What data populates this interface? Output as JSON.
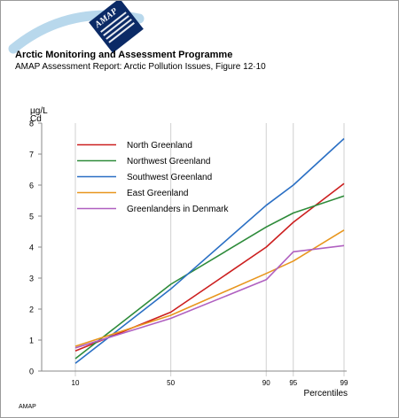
{
  "header": {
    "logo_text": "AMAP",
    "organization": "Arctic Monitoring and Assessment Programme",
    "report_title": "AMAP Assessment Report: Arctic Pollution Issues, Figure 12·10"
  },
  "footer": {
    "label": "AMAP"
  },
  "chart_data": {
    "type": "line",
    "title": "",
    "ylabel_line1": "Cd",
    "ylabel_line2": "µg/L",
    "xlabel": "Percentiles",
    "ylim": [
      0,
      8
    ],
    "yticks": [
      0,
      1,
      2,
      3,
      4,
      5,
      6,
      7,
      8
    ],
    "xticks": [
      10,
      50,
      90,
      95,
      99
    ],
    "x_tick_labels": [
      "10",
      "50",
      "90",
      "95",
      "99"
    ],
    "grid": "vertical lines at x ticks",
    "legend_position": "top-left",
    "series": [
      {
        "name": "North Greenland",
        "color": "#cc1f1f",
        "x": [
          10,
          50,
          90,
          95,
          99
        ],
        "values": [
          0.65,
          1.9,
          4.0,
          4.8,
          6.05
        ]
      },
      {
        "name": "Northwest Greenland",
        "color": "#2e8b3a",
        "x": [
          10,
          50,
          90,
          95,
          99
        ],
        "values": [
          0.4,
          2.8,
          4.65,
          5.1,
          5.65
        ]
      },
      {
        "name": "Southwest Greenland",
        "color": "#2a6fc4",
        "x": [
          10,
          50,
          90,
          95,
          99
        ],
        "values": [
          0.25,
          2.65,
          5.35,
          6.0,
          7.5
        ]
      },
      {
        "name": "East Greenland",
        "color": "#e8961e",
        "x": [
          10,
          50,
          90,
          95,
          99
        ],
        "values": [
          0.8,
          1.8,
          3.15,
          3.55,
          4.55
        ]
      },
      {
        "name": "Greenlanders in Denmark",
        "color": "#b060c0",
        "x": [
          10,
          50,
          90,
          95,
          99
        ],
        "values": [
          0.75,
          1.7,
          2.95,
          3.85,
          4.05
        ]
      }
    ]
  }
}
